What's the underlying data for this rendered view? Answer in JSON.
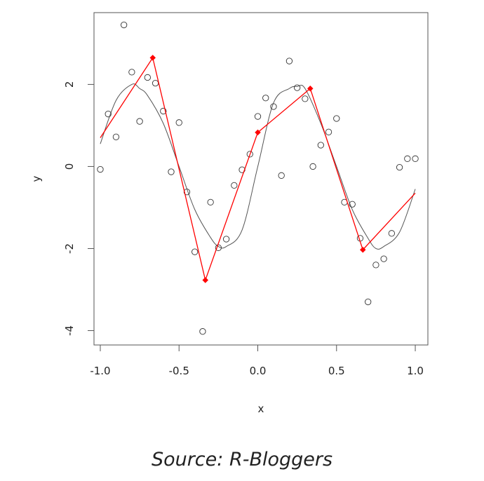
{
  "chart_data": {
    "type": "scatter",
    "xlabel": "x",
    "ylabel": "y",
    "xlim": [
      -1.04,
      1.08
    ],
    "ylim": [
      -4.35,
      3.75
    ],
    "x_ticks": [
      -1.0,
      -0.5,
      0.0,
      0.5,
      1.0
    ],
    "x_tick_labels": [
      "-1.0",
      "-0.5",
      "0.0",
      "0.5",
      "1.0"
    ],
    "y_ticks": [
      -4,
      -2,
      0,
      2
    ],
    "y_tick_labels": [
      "-4",
      "-2",
      "0",
      "2"
    ],
    "series": [
      {
        "kind": "points",
        "color": "#333333",
        "x": [
          -1.0,
          -0.95,
          -0.9,
          -0.85,
          -0.8,
          -0.75,
          -0.7,
          -0.65,
          -0.6,
          -0.55,
          -0.5,
          -0.45,
          -0.4,
          -0.35,
          -0.3,
          -0.25,
          -0.2,
          -0.15,
          -0.1,
          -0.05,
          0.0,
          0.05,
          0.1,
          0.15,
          0.2,
          0.25,
          0.3,
          0.35,
          0.4,
          0.45,
          0.5,
          0.55,
          0.6,
          0.65,
          0.7,
          0.75,
          0.8,
          0.85,
          0.9,
          0.95,
          1.0
        ],
        "y": [
          -0.07,
          1.28,
          0.72,
          3.45,
          2.3,
          1.1,
          2.17,
          2.03,
          1.35,
          -0.13,
          1.07,
          -0.62,
          -2.08,
          -4.02,
          -0.87,
          -1.98,
          -1.77,
          -0.46,
          -0.08,
          0.3,
          1.22,
          1.67,
          1.46,
          -0.22,
          2.57,
          1.92,
          1.65,
          0.0,
          0.52,
          0.84,
          1.17,
          -0.87,
          -0.92,
          -1.75,
          -3.3,
          -2.4,
          -2.25,
          -1.63,
          -0.02,
          0.19,
          0.19
        ]
      },
      {
        "kind": "curve",
        "color": "#555555",
        "x": [
          -1.0,
          -0.9,
          -0.8,
          -0.75,
          -0.7,
          -0.6,
          -0.5,
          -0.4,
          -0.3,
          -0.25,
          -0.2,
          -0.1,
          0.0,
          0.1,
          0.2,
          0.25,
          0.3,
          0.4,
          0.5,
          0.6,
          0.7,
          0.75,
          0.8,
          0.9,
          1.0
        ],
        "y": [
          0.55,
          1.61,
          2.0,
          1.9,
          1.73,
          1.05,
          0.0,
          -1.05,
          -1.73,
          -1.95,
          -1.95,
          -1.55,
          0.0,
          1.55,
          1.9,
          1.95,
          1.9,
          1.05,
          0.0,
          -1.05,
          -1.75,
          -2.0,
          -1.95,
          -1.6,
          -0.55
        ]
      },
      {
        "kind": "segments",
        "color": "#ff0000",
        "x": [
          -1.0,
          -0.667,
          -0.333,
          0.0,
          0.333,
          0.667,
          1.0
        ],
        "y": [
          0.7,
          2.65,
          -2.77,
          0.83,
          1.9,
          -2.03,
          -0.65
        ]
      }
    ]
  },
  "caption": "Source: R-Bloggers"
}
